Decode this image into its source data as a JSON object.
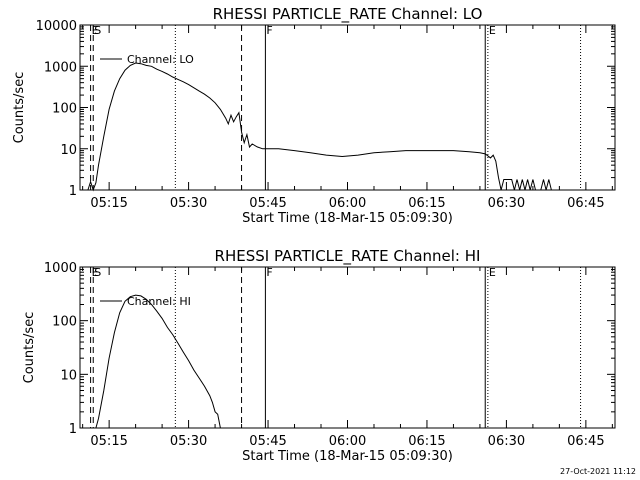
{
  "chart_data": [
    {
      "type": "line",
      "title": "RHESSI PARTICLE_RATE Channel: LO",
      "xlabel": "Start Time (18-Mar-15 05:09:30)",
      "ylabel": "Counts/sec",
      "yscale": "log",
      "ylim": [
        1,
        10000
      ],
      "yticks": [
        {
          "value": 1,
          "label": "1"
        },
        {
          "value": 10,
          "label": "10"
        },
        {
          "value": 100,
          "label": "100"
        },
        {
          "value": 1000,
          "label": "1000"
        },
        {
          "value": 10000,
          "label": "10000"
        }
      ],
      "xlim": [
        "05:09:30",
        "06:50:30"
      ],
      "xticks": [
        "05:15",
        "05:30",
        "05:45",
        "06:00",
        "06:15",
        "06:30",
        "06:45"
      ],
      "legend": {
        "entry": "Channel: LO",
        "placement": "top-left"
      },
      "markers": [
        {
          "time": "05:11:30",
          "label": "E",
          "style": "dashed"
        },
        {
          "time": "05:12:00",
          "label": "S",
          "style": "dashed"
        },
        {
          "time": "05:27:30",
          "label": "",
          "style": "dotted"
        },
        {
          "time": "05:40:00",
          "label": "",
          "style": "dashed"
        },
        {
          "time": "05:44:30",
          "label": "F",
          "style": "solid"
        },
        {
          "time": "06:26:00",
          "label": "",
          "style": "solid"
        },
        {
          "time": "06:26:30",
          "label": "E",
          "style": "dotted"
        },
        {
          "time": "06:44:00",
          "label": "",
          "style": "dotted"
        }
      ],
      "series": [
        {
          "name": "",
          "points": [
            [
              "05:11:00",
              1
            ],
            [
              "05:11:30",
              1.6
            ],
            [
              "05:12:00",
              1
            ],
            [
              "05:12:30",
              1.5
            ],
            [
              "05:13:00",
              4
            ],
            [
              "05:14:00",
              20
            ],
            [
              "05:15:00",
              90
            ],
            [
              "05:16:00",
              250
            ],
            [
              "05:17:00",
              500
            ],
            [
              "05:18:00",
              800
            ],
            [
              "05:19:00",
              1050
            ],
            [
              "05:20:00",
              1200
            ],
            [
              "05:21:00",
              1150
            ],
            [
              "05:22:00",
              1050
            ],
            [
              "05:23:00",
              1000
            ],
            [
              "05:24:00",
              850
            ],
            [
              "05:25:00",
              750
            ],
            [
              "05:26:00",
              650
            ],
            [
              "05:27:00",
              550
            ],
            [
              "05:28:00",
              480
            ],
            [
              "05:29:00",
              420
            ],
            [
              "05:30:00",
              360
            ],
            [
              "05:31:00",
              300
            ],
            [
              "05:32:00",
              250
            ],
            [
              "05:33:00",
              210
            ],
            [
              "05:34:00",
              170
            ],
            [
              "05:35:00",
              130
            ],
            [
              "05:36:00",
              90
            ],
            [
              "05:37:00",
              55
            ],
            [
              "05:37:30",
              40
            ],
            [
              "05:38:00",
              65
            ],
            [
              "05:38:30",
              45
            ],
            [
              "05:39:00",
              60
            ],
            [
              "05:39:30",
              75
            ],
            [
              "05:40:00",
              25
            ],
            [
              "05:40:30",
              14
            ],
            [
              "05:41:00",
              22
            ],
            [
              "05:41:30",
              11
            ],
            [
              "05:42:00",
              13
            ],
            [
              "05:43:00",
              11
            ],
            [
              "05:44:00",
              10
            ],
            [
              "05:45:00",
              10
            ],
            [
              "05:47:00",
              10
            ],
            [
              "05:50:00",
              9
            ],
            [
              "05:53:00",
              8
            ],
            [
              "05:56:00",
              7
            ],
            [
              "05:59:00",
              6.5
            ],
            [
              "06:02:00",
              7
            ],
            [
              "06:05:00",
              8
            ],
            [
              "06:08:00",
              8.5
            ],
            [
              "06:11:00",
              9
            ],
            [
              "06:14:00",
              9
            ],
            [
              "06:17:00",
              9
            ],
            [
              "06:20:00",
              9
            ],
            [
              "06:23:00",
              8.5
            ],
            [
              "06:25:00",
              8
            ],
            [
              "06:26:00",
              7.5
            ],
            [
              "06:27:00",
              6
            ],
            [
              "06:27:30",
              7
            ],
            [
              "06:28:00",
              5
            ],
            [
              "06:28:30",
              2
            ],
            [
              "06:29:00",
              1
            ],
            [
              "06:29:30",
              1.8
            ],
            [
              "06:31:00",
              1.8
            ],
            [
              "06:31:30",
              1
            ],
            [
              "06:32:00",
              1.8
            ],
            [
              "06:32:30",
              1
            ],
            [
              "06:33:00",
              1.8
            ],
            [
              "06:33:30",
              1
            ],
            [
              "06:34:00",
              1.8
            ],
            [
              "06:34:30",
              1
            ],
            [
              "06:35:00",
              1.8
            ],
            [
              "06:35:30",
              1
            ],
            [
              "06:36:30",
              1
            ],
            [
              "06:37:00",
              1.8
            ],
            [
              "06:37:30",
              1
            ],
            [
              "06:38:00",
              1.8
            ],
            [
              "06:38:30",
              1
            ]
          ]
        }
      ]
    },
    {
      "type": "line",
      "title": "RHESSI PARTICLE_RATE Channel: HI",
      "xlabel": "Start Time (18-Mar-15 05:09:30)",
      "ylabel": "Counts/sec",
      "yscale": "log",
      "ylim": [
        1,
        1000
      ],
      "yticks": [
        {
          "value": 1,
          "label": "1"
        },
        {
          "value": 10,
          "label": "10"
        },
        {
          "value": 100,
          "label": "100"
        },
        {
          "value": 1000,
          "label": "1000"
        }
      ],
      "xlim": [
        "05:09:30",
        "06:50:30"
      ],
      "xticks": [
        "05:15",
        "05:30",
        "05:45",
        "06:00",
        "06:15",
        "06:30",
        "06:45"
      ],
      "legend": {
        "entry": "Channel: HI",
        "placement": "top-left"
      },
      "markers": [
        {
          "time": "05:11:30",
          "label": "E",
          "style": "dashed"
        },
        {
          "time": "05:12:00",
          "label": "S",
          "style": "dashed"
        },
        {
          "time": "05:27:30",
          "label": "",
          "style": "dotted"
        },
        {
          "time": "05:40:00",
          "label": "",
          "style": "dashed"
        },
        {
          "time": "05:44:30",
          "label": "F",
          "style": "solid"
        },
        {
          "time": "06:26:00",
          "label": "",
          "style": "solid"
        },
        {
          "time": "06:26:30",
          "label": "E",
          "style": "dotted"
        },
        {
          "time": "06:44:00",
          "label": "",
          "style": "dotted"
        }
      ],
      "series": [
        {
          "name": "",
          "points": [
            [
              "05:12:30",
              1
            ],
            [
              "05:13:00",
              1.5
            ],
            [
              "05:14:00",
              5
            ],
            [
              "05:15:00",
              20
            ],
            [
              "05:16:00",
              60
            ],
            [
              "05:17:00",
              140
            ],
            [
              "05:18:00",
              230
            ],
            [
              "05:19:00",
              280
            ],
            [
              "05:20:00",
              300
            ],
            [
              "05:21:00",
              290
            ],
            [
              "05:22:00",
              250
            ],
            [
              "05:23:00",
              200
            ],
            [
              "05:24:00",
              150
            ],
            [
              "05:25:00",
              110
            ],
            [
              "05:26:00",
              75
            ],
            [
              "05:27:00",
              55
            ],
            [
              "05:28:00",
              38
            ],
            [
              "05:29:00",
              26
            ],
            [
              "05:30:00",
              18
            ],
            [
              "05:31:00",
              12
            ],
            [
              "05:32:00",
              8.5
            ],
            [
              "05:33:00",
              6
            ],
            [
              "05:34:00",
              4
            ],
            [
              "05:34:30",
              3
            ],
            [
              "05:35:00",
              2
            ],
            [
              "05:35:30",
              1.8
            ],
            [
              "05:36:00",
              1
            ]
          ]
        }
      ]
    }
  ],
  "footer": {
    "timestamp": "27-Oct-2021 11:12"
  }
}
